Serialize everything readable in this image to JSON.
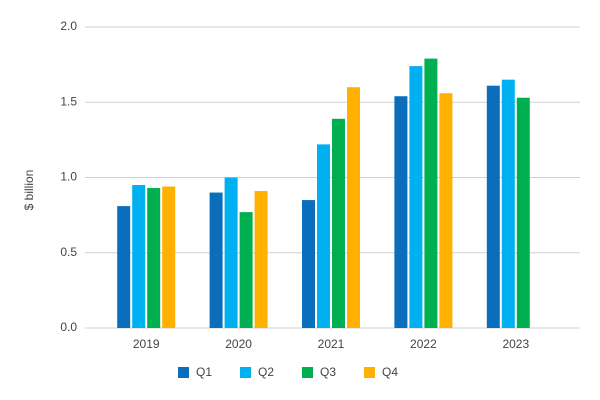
{
  "chart_data": {
    "type": "bar",
    "y_label": "$ billion",
    "categories": [
      "2019",
      "2020",
      "2021",
      "2022",
      "2023"
    ],
    "series": [
      {
        "name": "Q1",
        "color": "#0b6ebd",
        "values": [
          0.81,
          0.9,
          0.85,
          1.54,
          1.61
        ]
      },
      {
        "name": "Q2",
        "color": "#00b0f0",
        "values": [
          0.95,
          1.0,
          1.22,
          1.74,
          1.65
        ]
      },
      {
        "name": "Q3",
        "color": "#00b050",
        "values": [
          0.93,
          0.77,
          1.39,
          1.79,
          1.53
        ]
      },
      {
        "name": "Q4",
        "color": "#ffb000",
        "values": [
          0.94,
          0.91,
          1.6,
          1.56,
          null
        ]
      }
    ],
    "ylim": [
      0,
      2
    ],
    "yticks": [
      {
        "value": 0,
        "label": "0.0"
      },
      {
        "value": 0.5,
        "label": "0.5"
      },
      {
        "value": 1,
        "label": "1.0"
      },
      {
        "value": 1.5,
        "label": "1.5"
      },
      {
        "value": 2,
        "label": "2.0"
      }
    ],
    "grid": true,
    "legend": "bottom"
  }
}
